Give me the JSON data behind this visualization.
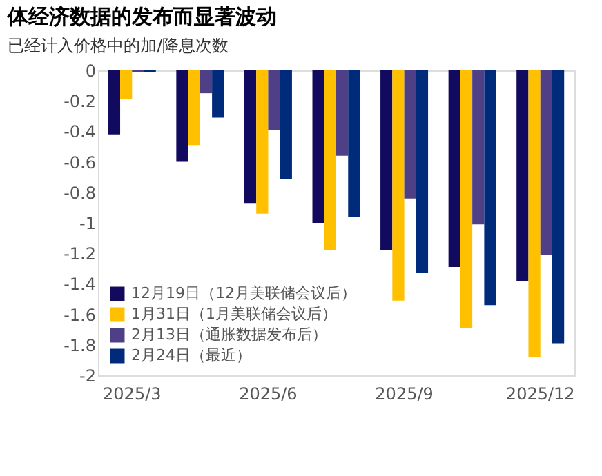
{
  "chart_data": {
    "type": "bar",
    "title": "体经济数据的发布而显著波动",
    "subtitle": "已经计入价格中的加/降息次数",
    "categories": [
      "2025/3",
      null,
      "2025/6",
      null,
      "2025/9",
      null,
      "2025/12"
    ],
    "series": [
      {
        "name": "12月19日（12月美联储会议后）",
        "color": "#120a5e",
        "values": [
          -0.42,
          -0.6,
          -0.87,
          -1.0,
          -1.18,
          -1.29,
          -1.38
        ]
      },
      {
        "name": "1月31日（1月美联储会议后）",
        "color": "#ffc000",
        "values": [
          -0.19,
          -0.49,
          -0.94,
          -1.18,
          -1.51,
          -1.69,
          -1.88
        ]
      },
      {
        "name": "2月13日（通胀数据发布后）",
        "color": "#4f3f86",
        "values": [
          -0.01,
          -0.15,
          -0.39,
          -0.56,
          -0.84,
          -1.01,
          -1.21
        ]
      },
      {
        "name": "2月24日（最近）",
        "color": "#002b7a",
        "values": [
          -0.01,
          -0.31,
          -0.71,
          -0.96,
          -1.33,
          -1.54,
          -1.79
        ]
      }
    ],
    "ylim": [
      -2,
      0
    ],
    "yticks": [
      0,
      -0.2,
      -0.4,
      -0.6,
      -0.8,
      -1,
      -1.2,
      -1.4,
      -1.6,
      -1.8,
      -2
    ],
    "grid": false,
    "legend": "bottom left"
  }
}
